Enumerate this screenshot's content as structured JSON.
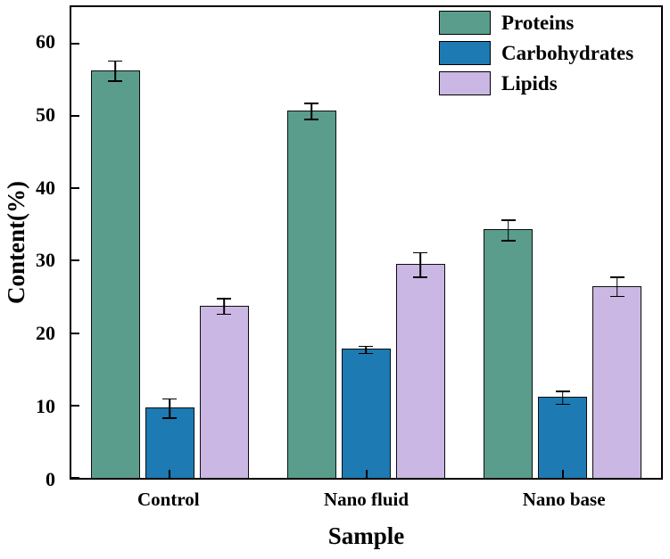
{
  "chart_data": {
    "type": "bar",
    "title": "",
    "xlabel": "Sample",
    "ylabel": "Content(%)",
    "ylim": [
      0,
      65
    ],
    "yticks": [
      0,
      10,
      20,
      30,
      40,
      50,
      60
    ],
    "categories": [
      "Control",
      "Nano fluid",
      "Nano base"
    ],
    "series": [
      {
        "name": "Proteins",
        "color": "#5b9d8c",
        "values": [
          56.3,
          50.7,
          34.3
        ],
        "errors": [
          1.5,
          1.2,
          1.5
        ]
      },
      {
        "name": "Carbohydrates",
        "color": "#1d7ab2",
        "values": [
          9.7,
          17.8,
          11.2
        ],
        "errors": [
          1.4,
          0.6,
          1.0
        ]
      },
      {
        "name": "Lipids",
        "color": "#cbb7e3",
        "values": [
          23.8,
          29.5,
          26.5
        ],
        "errors": [
          1.2,
          1.8,
          1.4
        ]
      }
    ],
    "legend_position": "top-right",
    "grid": false,
    "axis_color": "#000000",
    "bar_edge_color": "#0d0d0d"
  }
}
